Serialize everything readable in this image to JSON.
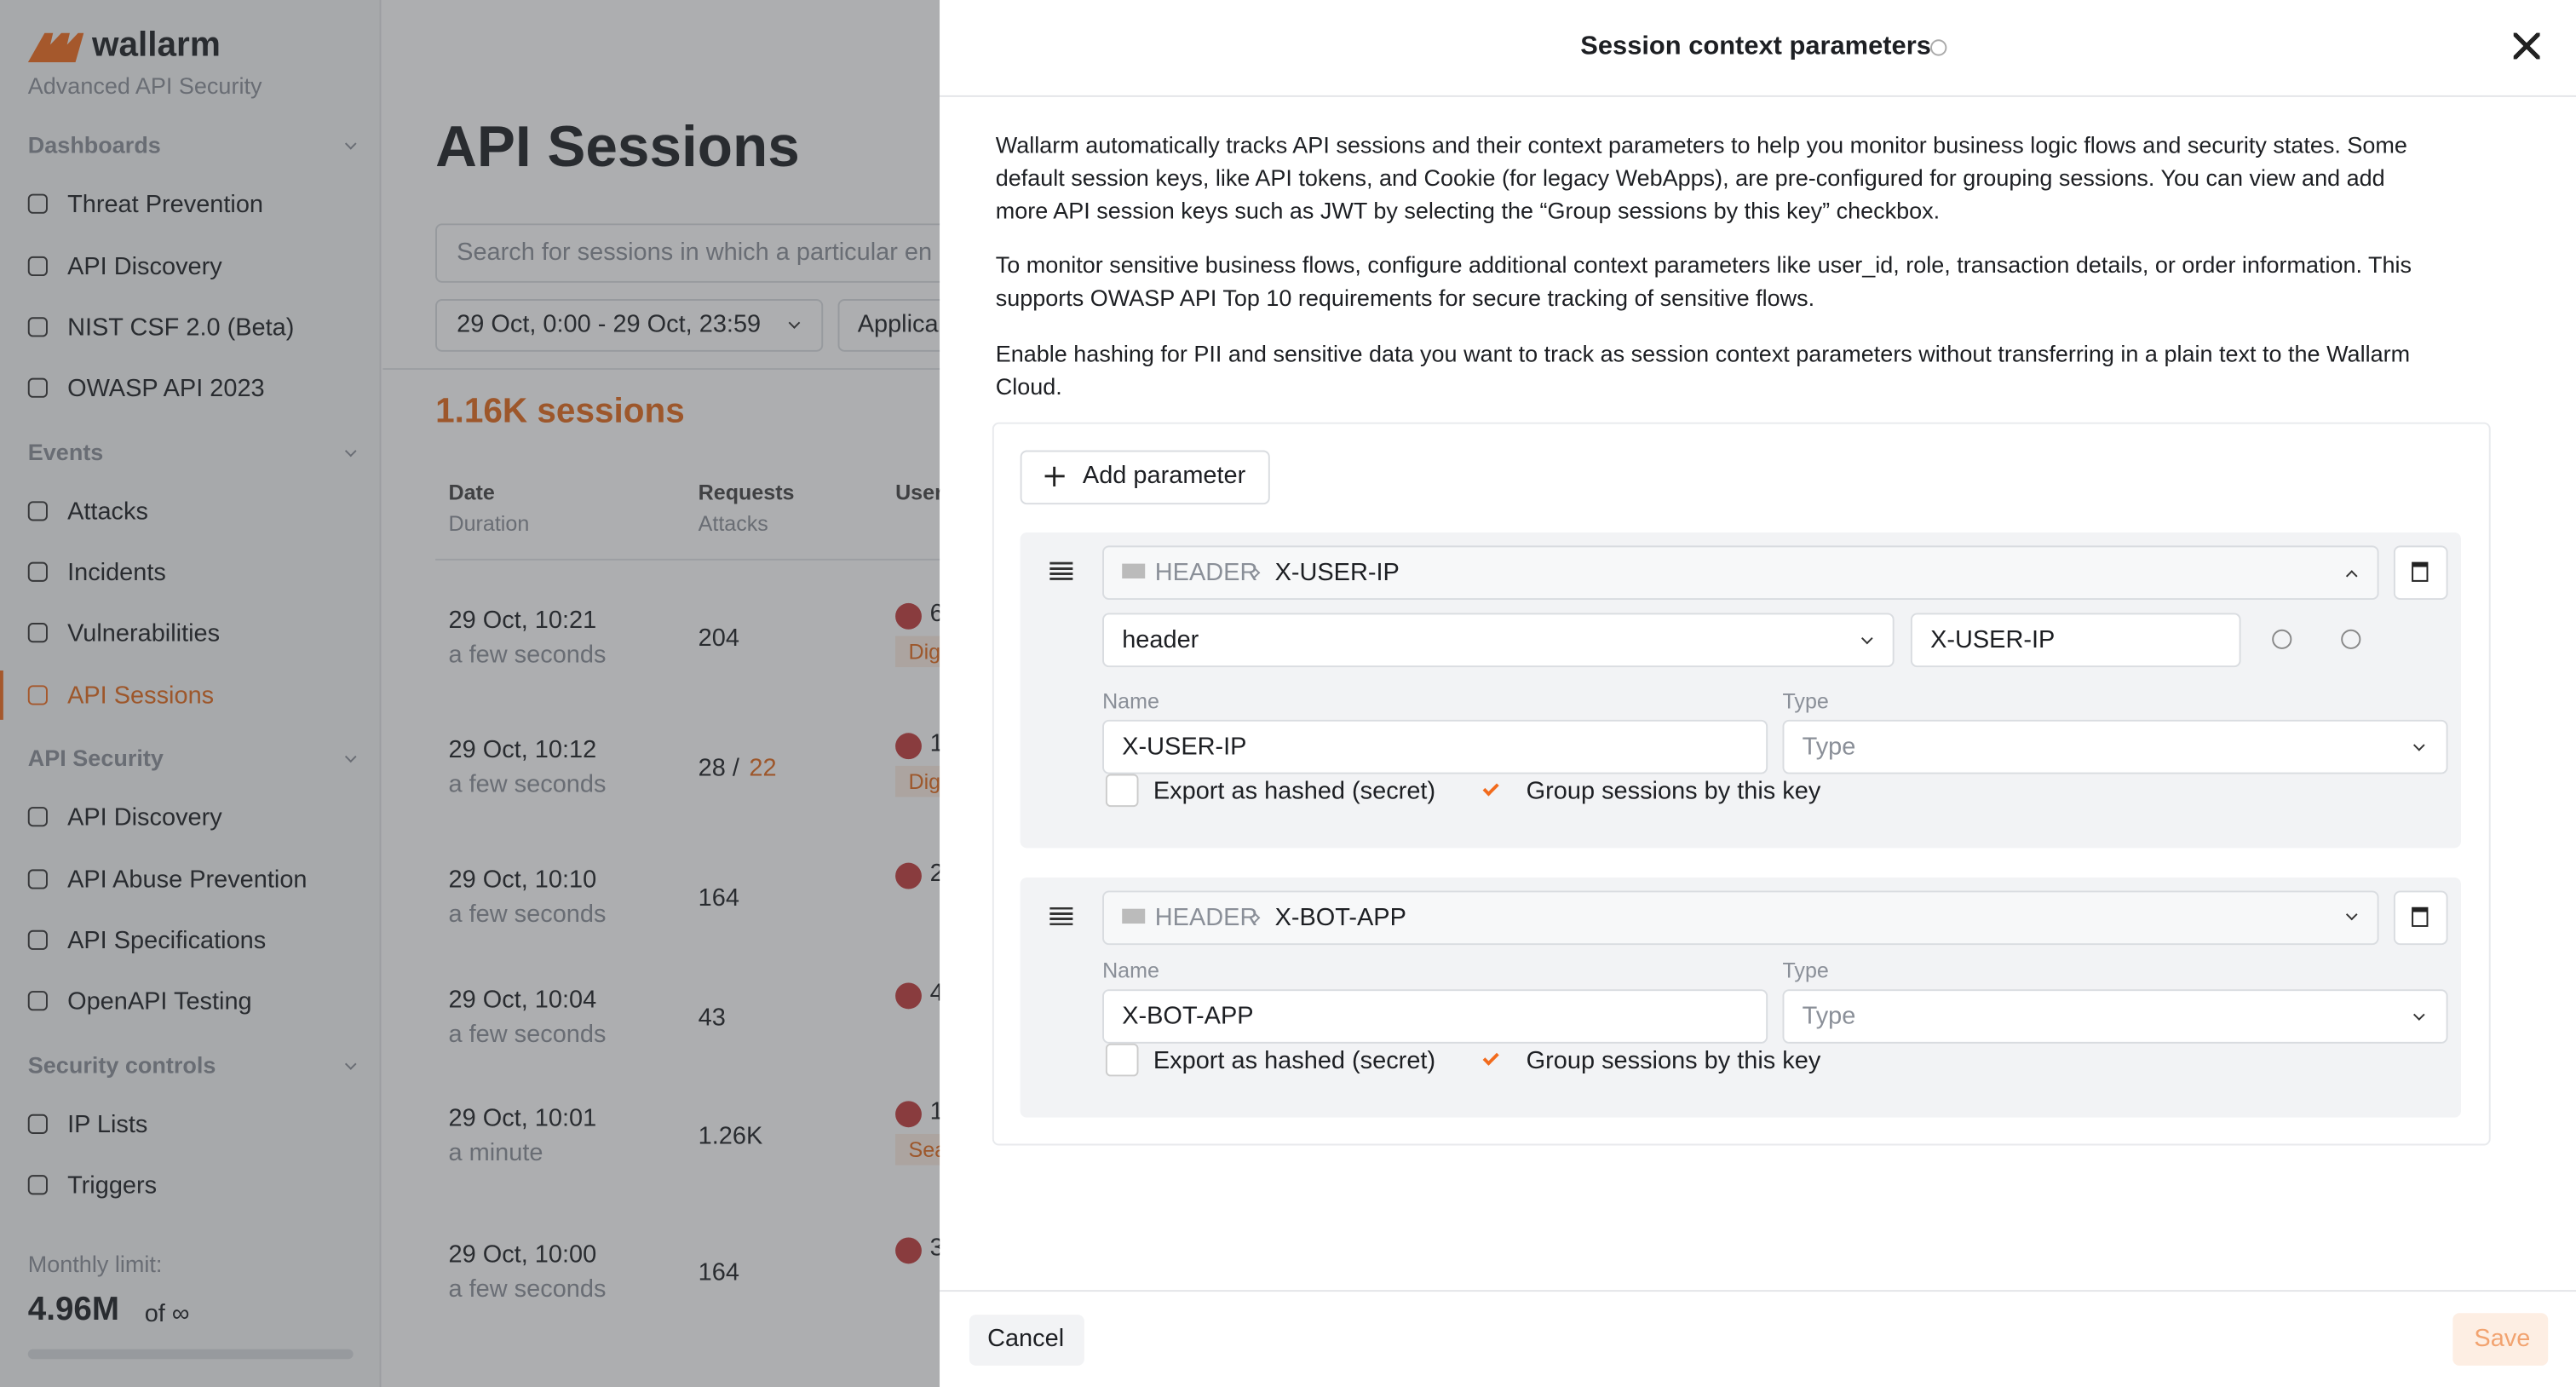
{
  "sidebar": {
    "brand": "wallarm",
    "tagline": "Advanced API Security",
    "sections": [
      {
        "title": "Dashboards",
        "items": [
          "Threat Prevention",
          "API Discovery",
          "NIST CSF 2.0 (Beta)",
          "OWASP API 2023"
        ]
      },
      {
        "title": "Events",
        "items": [
          "Attacks",
          "Incidents",
          "Vulnerabilities",
          "API Sessions"
        ]
      },
      {
        "title": "API Security",
        "items": [
          "API Discovery",
          "API Abuse Prevention",
          "API Specifications",
          "OpenAPI Testing"
        ]
      },
      {
        "title": "Security controls",
        "items": [
          "IP Lists",
          "Triggers"
        ]
      }
    ],
    "active": "API Sessions",
    "limit_label": "Monthly limit:",
    "limit_value": "4.96M",
    "limit_of": "of ∞"
  },
  "main": {
    "title": "API Sessions",
    "search_placeholder": "Search for sessions in which a particular en",
    "date_filter": "29 Oct, 0:00 - 29 Oct, 23:59",
    "app_filter": "Applica",
    "count": "1.16K sessions",
    "columns": [
      [
        "Date",
        "Duration"
      ],
      [
        "Requests",
        "Attacks"
      ],
      [
        "User"
      ]
    ],
    "rows": [
      {
        "date": "29 Oct, 10:21",
        "duration": "a few seconds",
        "requests": "204",
        "user": "6",
        "tag": "Dig"
      },
      {
        "date": "29 Oct, 10:12",
        "duration": "a few seconds",
        "requests": "28 /",
        "attacks": "22",
        "user": "1",
        "tag": "Dig"
      },
      {
        "date": "29 Oct, 10:10",
        "duration": "a few seconds",
        "requests": "164",
        "user": "2"
      },
      {
        "date": "29 Oct, 10:04",
        "duration": "a few seconds",
        "requests": "43",
        "user": "4"
      },
      {
        "date": "29 Oct, 10:01",
        "duration": "a minute",
        "requests": "1.26K",
        "user": "1",
        "tag": "Sea"
      },
      {
        "date": "29 Oct, 10:00",
        "duration": "a few seconds",
        "requests": "164",
        "user": "3"
      }
    ]
  },
  "modal": {
    "title": "Session context parameters",
    "paragraphs": [
      "Wallarm automatically tracks API sessions and their context parameters to help you monitor business logic flows and security states. Some default session keys, like API tokens, and Cookie (for legacy WebApps), are pre-configured for grouping sessions. You can view and add more API session keys such as JWT by selecting the “Group sessions by this key” checkbox.",
      "To monitor sensitive business flows, configure additional context parameters like user_id, role, transaction details, or order information. This supports OWASP API Top 10 requirements for secure tracking of sensitive flows.",
      "Enable hashing for PII and sensitive data you want to track as session context parameters without transferring in a plain text to the Wallarm Cloud."
    ],
    "add_button": "Add parameter",
    "parameters": [
      {
        "source": "HEADER",
        "key": "X-USER-IP",
        "selector": "header",
        "selector_value": "X-USER-IP",
        "name_label": "Name",
        "name": "X-USER-IP",
        "type_label": "Type",
        "type_placeholder": "Type",
        "export": "Export as hashed (secret)",
        "group": "Group sessions by this key"
      },
      {
        "source": "HEADER",
        "key": "X-BOT-APP",
        "name_label": "Name",
        "name": "X-BOT-APP",
        "type_label": "Type",
        "type_placeholder": "Type",
        "export": "Export as hashed (secret)",
        "group": "Group sessions by this key"
      }
    ],
    "cancel": "Cancel",
    "save": "Save"
  }
}
